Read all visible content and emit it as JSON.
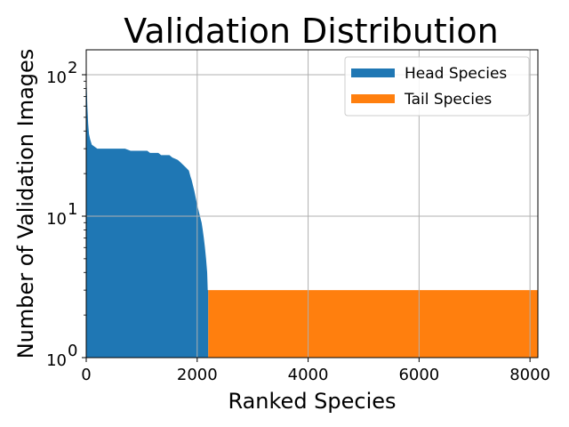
{
  "chart_data": {
    "type": "area",
    "title": "Validation Distribution",
    "xlabel": "Ranked Species",
    "ylabel": "Number of Validation Images",
    "xlim": [
      0,
      8142
    ],
    "ylim": [
      1,
      150
    ],
    "yscale": "log",
    "grid": true,
    "legend_position": "top-right",
    "x_ticks": [
      {
        "value": 0,
        "label": "0"
      },
      {
        "value": 2000,
        "label": "2000"
      },
      {
        "value": 4000,
        "label": "4000"
      },
      {
        "value": 6000,
        "label": "6000"
      },
      {
        "value": 8000,
        "label": "8000"
      }
    ],
    "y_ticks": [
      {
        "value": 1,
        "base": "10",
        "exp": "0"
      },
      {
        "value": 10,
        "base": "10",
        "exp": "1"
      },
      {
        "value": 100,
        "base": "10",
        "exp": "2"
      }
    ],
    "series": [
      {
        "name": "Head Species",
        "color": "#1f77b4",
        "points": [
          [
            0,
            100
          ],
          [
            10,
            80
          ],
          [
            20,
            60
          ],
          [
            35,
            45
          ],
          [
            50,
            38
          ],
          [
            70,
            35
          ],
          [
            100,
            32
          ],
          [
            150,
            31
          ],
          [
            200,
            30
          ],
          [
            400,
            30
          ],
          [
            700,
            30
          ],
          [
            800,
            29
          ],
          [
            1100,
            29
          ],
          [
            1150,
            28
          ],
          [
            1300,
            28
          ],
          [
            1350,
            27
          ],
          [
            1500,
            27
          ],
          [
            1550,
            26
          ],
          [
            1650,
            25
          ],
          [
            1700,
            24
          ],
          [
            1750,
            23
          ],
          [
            1800,
            22
          ],
          [
            1850,
            21
          ],
          [
            1880,
            19
          ],
          [
            1900,
            18
          ],
          [
            1950,
            15
          ],
          [
            2000,
            12
          ],
          [
            2050,
            10
          ],
          [
            2080,
            9
          ],
          [
            2100,
            8
          ],
          [
            2120,
            7
          ],
          [
            2140,
            6
          ],
          [
            2160,
            5
          ],
          [
            2180,
            4
          ],
          [
            2190,
            3
          ],
          [
            2200,
            3
          ]
        ]
      },
      {
        "name": "Tail Species",
        "color": "#ff7f0e",
        "points": [
          [
            2200,
            3
          ],
          [
            8142,
            3
          ]
        ]
      }
    ]
  }
}
